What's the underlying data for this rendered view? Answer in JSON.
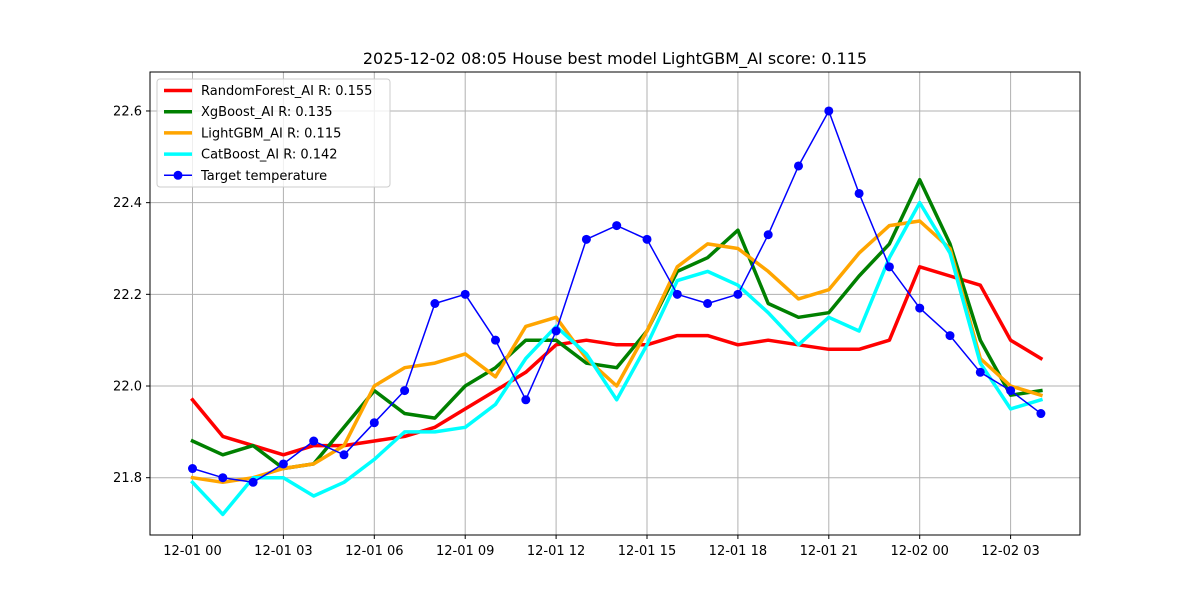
{
  "chart_data": {
    "type": "line",
    "title": "2025-12-02 08:05 House best model LightGBM_AI score: 0.115",
    "xlabel": "",
    "ylabel": "",
    "x": [
      "2025-12-01 00:00",
      "2025-12-01 01:00",
      "2025-12-01 02:00",
      "2025-12-01 03:00",
      "2025-12-01 04:00",
      "2025-12-01 05:00",
      "2025-12-01 06:00",
      "2025-12-01 07:00",
      "2025-12-01 08:00",
      "2025-12-01 09:00",
      "2025-12-01 10:00",
      "2025-12-01 11:00",
      "2025-12-01 12:00",
      "2025-12-01 13:00",
      "2025-12-01 14:00",
      "2025-12-01 15:00",
      "2025-12-01 16:00",
      "2025-12-01 17:00",
      "2025-12-01 18:00",
      "2025-12-01 19:00",
      "2025-12-01 20:00",
      "2025-12-01 21:00",
      "2025-12-01 22:00",
      "2025-12-01 23:00",
      "2025-12-02 00:00",
      "2025-12-02 01:00",
      "2025-12-02 02:00",
      "2025-12-02 03:00",
      "2025-12-02 04:00"
    ],
    "x_ticks": [
      "12-01 00",
      "12-01 03",
      "12-01 06",
      "12-01 09",
      "12-01 12",
      "12-01 15",
      "12-01 18",
      "12-01 21",
      "12-02 00",
      "12-02 03"
    ],
    "y_ticks": [
      "21.8",
      "22.0",
      "22.2",
      "22.4",
      "22.6"
    ],
    "ylim": [
      21.675,
      22.685
    ],
    "grid": true,
    "legend_position": "top-left",
    "series": [
      {
        "name": "RandomForest_AI R: 0.155",
        "color": "#ff0000",
        "markers": false,
        "values": [
          21.97,
          21.89,
          21.87,
          21.85,
          21.87,
          21.87,
          21.88,
          21.89,
          21.91,
          21.95,
          21.99,
          22.03,
          22.09,
          22.1,
          22.09,
          22.09,
          22.11,
          22.11,
          22.09,
          22.1,
          22.09,
          22.08,
          22.08,
          22.1,
          22.26,
          22.24,
          22.22,
          22.1,
          22.06
        ]
      },
      {
        "name": "XgBoost_AI R: 0.135",
        "color": "#008000",
        "markers": false,
        "values": [
          21.88,
          21.85,
          21.87,
          21.82,
          21.83,
          21.91,
          21.99,
          21.94,
          21.93,
          22.0,
          22.04,
          22.1,
          22.1,
          22.05,
          22.04,
          22.12,
          22.25,
          22.28,
          22.34,
          22.18,
          22.15,
          22.16,
          22.24,
          22.31,
          22.45,
          22.31,
          22.1,
          21.98,
          21.99
        ]
      },
      {
        "name": "LightGBM_AI R: 0.115",
        "color": "#ffa500",
        "markers": false,
        "values": [
          21.8,
          21.79,
          21.8,
          21.82,
          21.83,
          21.87,
          22.0,
          22.04,
          22.05,
          22.07,
          22.02,
          22.13,
          22.15,
          22.06,
          22.0,
          22.12,
          22.26,
          22.31,
          22.3,
          22.25,
          22.19,
          22.21,
          22.29,
          22.35,
          22.36,
          22.3,
          22.06,
          22.0,
          21.98
        ]
      },
      {
        "name": "CatBoost_AI R: 0.142",
        "color": "#00ffff",
        "markers": false,
        "values": [
          21.79,
          21.72,
          21.8,
          21.8,
          21.76,
          21.79,
          21.84,
          21.9,
          21.9,
          21.91,
          21.96,
          22.06,
          22.13,
          22.07,
          21.97,
          22.09,
          22.23,
          22.25,
          22.22,
          22.16,
          22.09,
          22.15,
          22.12,
          22.28,
          22.4,
          22.29,
          22.05,
          21.95,
          21.97
        ]
      },
      {
        "name": "Target temperature",
        "color": "#0000ff",
        "markers": true,
        "values": [
          21.82,
          21.8,
          21.79,
          21.83,
          21.88,
          21.85,
          21.92,
          21.99,
          22.18,
          22.2,
          22.1,
          21.97,
          22.12,
          22.32,
          22.35,
          22.32,
          22.2,
          22.18,
          22.2,
          22.33,
          22.48,
          22.6,
          22.42,
          22.26,
          22.17,
          22.11,
          22.03,
          21.99,
          21.94
        ]
      }
    ]
  }
}
